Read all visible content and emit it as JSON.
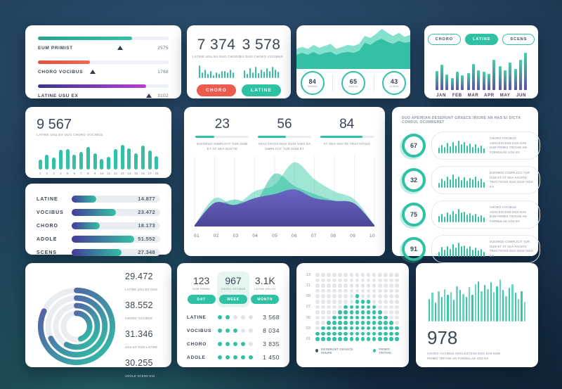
{
  "theme": {
    "teal": "#35c0a5",
    "teal_bright": "#2fc1a4",
    "red": "#ec5b4d",
    "purple": "#5b51a8",
    "indigo": "#453c99",
    "magenta": "#b93fd1",
    "navy_text": "#3d4654",
    "muted_text": "#a8afbb",
    "track": "#e9edf1",
    "dot_gray": "#dfe3e9",
    "legend_dark": "#4a5361"
  },
  "sliders": {
    "rows": [
      {
        "label": "EUM PRIMIST",
        "value": "2575",
        "fill_pct": 72,
        "marker_pct": 61,
        "gradient": "linear-gradient(90deg,#27a38d,#35c0a5)"
      },
      {
        "label": "CHORO VOCIBUS",
        "value": "1768",
        "fill_pct": 40,
        "marker_pct": 40,
        "gradient": "linear-gradient(90deg,#e0503f,#ef6a50)"
      },
      {
        "label": "LATINE USU EX",
        "value": "3102",
        "fill_pct": 83,
        "marker_pct": 83,
        "gradient": "linear-gradient(90deg,#3a3690,#b93fd1)"
      }
    ]
  },
  "stat_pair": {
    "left": {
      "value": "7 374",
      "caption": "LATINE USU EX DUO CHORO",
      "button": "CHORO",
      "spark": [
        90,
        38,
        58,
        28,
        48,
        22,
        38,
        30,
        48,
        48,
        38,
        62,
        42
      ]
    },
    "right": {
      "value": "3 578",
      "caption": "EX DUO CHORO VOCIBUS",
      "button": "LATINE",
      "spark": [
        55,
        32,
        72,
        42,
        82,
        36,
        62,
        46,
        72,
        52,
        82,
        62,
        46
      ]
    }
  },
  "area_kpi": {
    "back": [
      20,
      22,
      20,
      24,
      21,
      23,
      25,
      20,
      22,
      24,
      23,
      25,
      33,
      31,
      35,
      40,
      36,
      33,
      36,
      32,
      34
    ],
    "front": [
      14,
      16,
      14,
      17,
      14,
      16,
      17,
      14,
      16,
      17,
      16,
      18,
      26,
      24,
      28,
      30,
      27,
      25,
      28,
      26,
      27
    ],
    "circles": [
      {
        "value": "84",
        "label": "CHORO"
      },
      {
        "value": "65",
        "label": "ADOLE"
      },
      {
        "value": "43",
        "label": "SCENS"
      }
    ]
  },
  "monthly": {
    "tabs": [
      {
        "label": "CHORO",
        "active": false
      },
      {
        "label": "LATINE",
        "active": true
      },
      {
        "label": "SCENS",
        "active": false
      }
    ],
    "months": [
      "JAN",
      "FEB",
      "MAR",
      "APR",
      "MAY",
      "JUN"
    ],
    "bars": [
      [
        46,
        62,
        38
      ],
      [
        30,
        44,
        36
      ],
      [
        42,
        64,
        48
      ],
      [
        44,
        40,
        74
      ],
      [
        58,
        48,
        68
      ],
      [
        52,
        74,
        92
      ]
    ]
  },
  "big_spark": {
    "value": "9 567",
    "caption": "LATINE USU EX DUO CHORO VOCIBUS",
    "bars": [
      34,
      50,
      40,
      66,
      70,
      50,
      60,
      76,
      56,
      36,
      44,
      68,
      84,
      72,
      56,
      80,
      64,
      46
    ],
    "labels": [
      "1",
      "2",
      "3",
      "4",
      "5",
      "6",
      "7",
      "8",
      "9",
      "10",
      "11",
      "12",
      "13",
      "14",
      "15",
      "16",
      "17",
      "18"
    ]
  },
  "hbars": {
    "rows": [
      {
        "label": "LATINE",
        "value": "14.877",
        "pct": 28
      },
      {
        "label": "VOCIBUS",
        "value": "23.472",
        "pct": 50
      },
      {
        "label": "CHORO",
        "value": "18.173",
        "pct": 32
      },
      {
        "label": "ADOLE",
        "value": "51.552",
        "pct": 71
      },
      {
        "label": "SCENS",
        "value": "27.348",
        "pct": 56
      }
    ]
  },
  "main": {
    "stats": [
      {
        "value": "23",
        "caption": "EUISMOD SIMPLICIT TUR DUM ET AT SEA NOCTE",
        "pct": 35
      },
      {
        "value": "56",
        "caption": "TRACTATOS DUO DUIS VIDS EA SIMPLICIT TUR DUM ET",
        "pct": 52
      },
      {
        "value": "84",
        "caption": "AT SEA NOCTE TRACTATOS",
        "pct": 80
      }
    ],
    "x_labels": [
      "01",
      "02",
      "03",
      "04",
      "05",
      "06",
      "07",
      "08",
      "09",
      "10"
    ],
    "layers": [
      {
        "kind": "teal_light",
        "values": [
          2,
          42,
          32,
          52,
          62,
          95,
          70,
          52,
          40,
          2
        ]
      },
      {
        "kind": "teal",
        "values": [
          2,
          28,
          40,
          35,
          78,
          60,
          48,
          38,
          30,
          2
        ]
      },
      {
        "kind": "purple",
        "values": [
          2,
          35,
          32,
          42,
          48,
          55,
          42,
          38,
          34,
          2
        ]
      }
    ]
  },
  "progress_list": {
    "title": "DUO APEIRIAN DESERUNT GRAECE IRIURE AN HAS EI DICTA CONDUL OCURRERET",
    "rows": [
      {
        "value": "67",
        "text": "CHORO VOCIBUS ADOLESCENS DUO EAE EUM PRIMIS TRITANI AN FORMULAE USU EX",
        "spark": [
          35,
          55,
          40,
          70,
          45,
          75,
          50,
          80,
          60,
          75,
          50,
          65,
          40,
          60,
          35,
          50,
          30
        ]
      },
      {
        "value": "32",
        "text": "EUISMOD COMPLICIT TUR DUM ET AT SEA FACETE TRACTATOS DUO DUIS VIDS EA",
        "spark": [
          30,
          60,
          45,
          75,
          55,
          85,
          60,
          75,
          50,
          70,
          45,
          65,
          55,
          75,
          45,
          60,
          35
        ]
      },
      {
        "value": "75",
        "text": "CHORO VOCIBUS ADOLESCENS DUO EAE EUM PRIMIS TRITANI AN FORMULAE USU EX",
        "spark": [
          40,
          55,
          35,
          65,
          50,
          75,
          55,
          85,
          65,
          70,
          50,
          60,
          45,
          55,
          35,
          45,
          30
        ]
      },
      {
        "value": "91",
        "text": "EUISMOD COMPLICIT TUR DUM ET AT SEA FACETE TRACTATOS DUO DUIS VIDS EA",
        "spark": [
          30,
          65,
          45,
          70,
          50,
          80,
          60,
          90,
          70,
          75,
          55,
          70,
          45,
          60,
          40,
          50,
          30
        ]
      }
    ]
  },
  "rings": {
    "pcts": [
      82,
      68,
      58,
      45
    ],
    "items": [
      {
        "value": "29.472",
        "caption": "LATINE USU EX DUO"
      },
      {
        "value": "38.552",
        "caption": "CHORO VOCIBUS"
      },
      {
        "value": "31.346",
        "caption": "USU EX DUO LATINE"
      },
      {
        "value": "30.255",
        "caption": "ADOLE SCENS DUI"
      }
    ]
  },
  "periods": {
    "stats": [
      {
        "value": "123",
        "caption": "EUM PRIMIS",
        "button": "DAY",
        "highlight": false
      },
      {
        "value": "967",
        "caption": "CHORO VOCIBUS",
        "button": "WEEK",
        "highlight": true
      },
      {
        "value": "3.1K",
        "caption": "LATINE USU EX",
        "button": "MONTH",
        "highlight": false
      }
    ],
    "dots_total": 5,
    "rows": [
      {
        "label": "LATINE",
        "dots": 2,
        "value": "3 568"
      },
      {
        "label": "VOCIBUS",
        "dots": 3,
        "value": "8 034"
      },
      {
        "label": "CHORO",
        "dots": 4,
        "value": "3 835"
      },
      {
        "label": "ADOLE",
        "dots": 5,
        "value": "1 450"
      }
    ]
  },
  "matrix": {
    "y_labels": [
      "13",
      "11",
      "09",
      "07",
      "05",
      "03",
      "01"
    ],
    "cols": 15,
    "teal_ranges": [
      [
        -1,
        -1
      ],
      [
        -1,
        -1
      ],
      [
        -1,
        -1
      ],
      [
        -1,
        -1
      ],
      [
        7,
        7
      ],
      [
        7,
        9
      ],
      [
        5,
        10
      ],
      [
        4,
        11
      ],
      [
        3,
        12
      ],
      [
        2,
        13
      ],
      [
        1,
        14
      ],
      [
        0,
        14
      ],
      [
        0,
        14
      ]
    ],
    "legend": [
      {
        "label": "DESERUNT GRAECE IRIURE",
        "color": "#4a5361"
      },
      {
        "label": "PRIMIS TRITANI",
        "color": "#35c0a5"
      }
    ]
  },
  "big_bars": {
    "value": "978",
    "caption": "CHORO VOCIBUS ADOLESCENS DUO EAE EUM PRIMIS TRITANI AN FORMULAE USU EX",
    "bars": [
      46,
      58,
      38,
      62,
      50,
      66,
      54,
      60,
      44,
      72,
      64,
      56,
      50,
      70,
      54,
      76,
      82,
      62,
      74,
      66,
      80,
      60,
      72,
      86,
      64,
      52,
      68,
      76,
      58,
      46,
      62,
      40
    ]
  }
}
